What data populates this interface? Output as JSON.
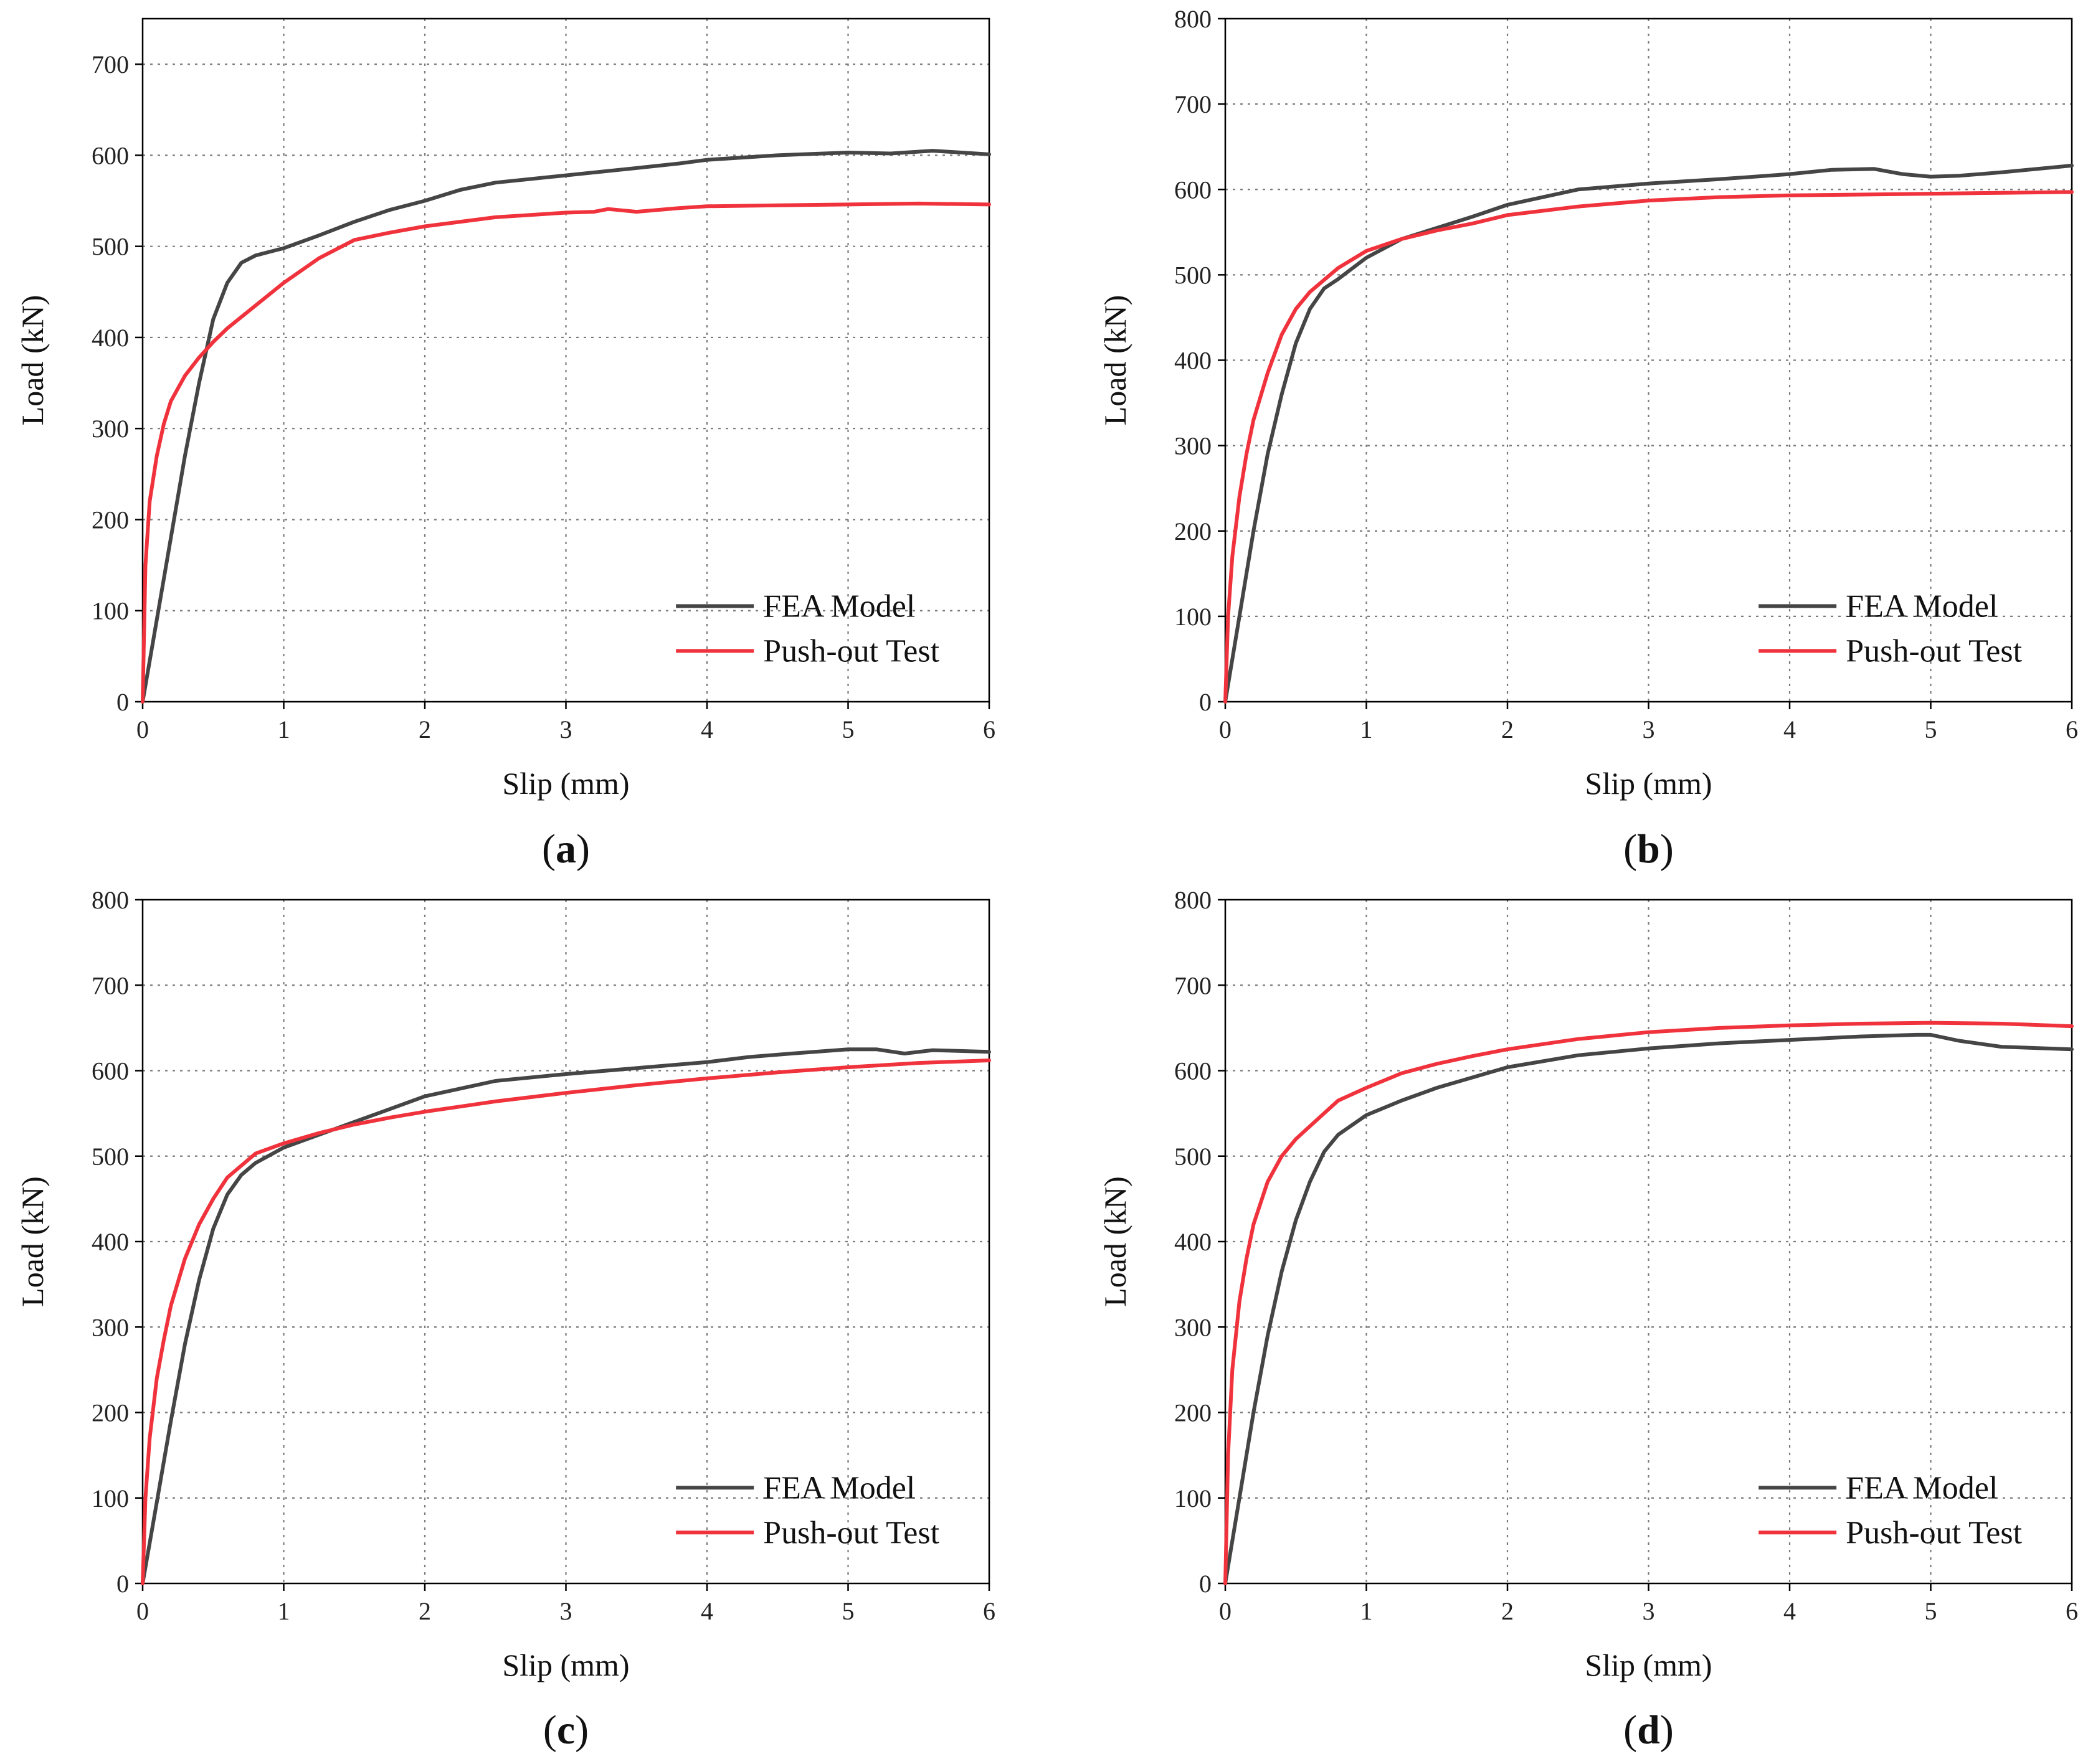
{
  "colors": {
    "fea": "#454545",
    "test": "#f0323c",
    "grid": "#7a7a7a",
    "axis": "#000000"
  },
  "chart_data": [
    {
      "id": "a",
      "type": "line",
      "caption": "a",
      "xlabel": "Slip (mm)",
      "ylabel": "Load (kN)",
      "xlim": [
        0,
        6
      ],
      "ylim": [
        0,
        750
      ],
      "xticks": [
        0,
        1,
        2,
        3,
        4,
        5,
        6
      ],
      "yticks": [
        0,
        100,
        200,
        300,
        400,
        500,
        600,
        700
      ],
      "grid": true,
      "legend_position": "bottom-right",
      "series": [
        {
          "name": "FEA Model",
          "color_key": "fea",
          "x": [
            0,
            0.1,
            0.2,
            0.3,
            0.4,
            0.5,
            0.6,
            0.7,
            0.8,
            0.9,
            1.0,
            1.25,
            1.5,
            1.75,
            2.0,
            2.25,
            2.5,
            3.0,
            3.5,
            3.8,
            4.0,
            4.5,
            5.0,
            5.3,
            5.6,
            6.0
          ],
          "y": [
            0,
            90,
            180,
            270,
            350,
            420,
            460,
            482,
            490,
            494,
            498,
            512,
            527,
            540,
            550,
            562,
            570,
            578,
            586,
            591,
            595,
            600,
            603,
            602,
            605,
            601
          ]
        },
        {
          "name": "Push-out Test",
          "color_key": "test",
          "x": [
            0,
            0.02,
            0.05,
            0.1,
            0.15,
            0.2,
            0.3,
            0.4,
            0.5,
            0.6,
            0.8,
            1.0,
            1.25,
            1.5,
            1.75,
            2.0,
            2.5,
            3.0,
            3.2,
            3.3,
            3.5,
            3.8,
            4.0,
            4.5,
            5.0,
            5.5,
            6.0
          ],
          "y": [
            0,
            150,
            220,
            270,
            305,
            330,
            358,
            378,
            395,
            410,
            435,
            460,
            487,
            507,
            515,
            522,
            532,
            537,
            538,
            541,
            538,
            542,
            544,
            545,
            546,
            547,
            546
          ]
        }
      ]
    },
    {
      "id": "b",
      "type": "line",
      "caption": "b",
      "xlabel": "Slip (mm)",
      "ylabel": "Load (kN)",
      "xlim": [
        0,
        6
      ],
      "ylim": [
        0,
        800
      ],
      "xticks": [
        0,
        1,
        2,
        3,
        4,
        5,
        6
      ],
      "yticks": [
        0,
        100,
        200,
        300,
        400,
        500,
        600,
        700,
        800
      ],
      "grid": true,
      "legend_position": "bottom-right",
      "series": [
        {
          "name": "FEA Model",
          "color_key": "fea",
          "x": [
            0,
            0.1,
            0.2,
            0.3,
            0.4,
            0.5,
            0.6,
            0.7,
            0.8,
            1.0,
            1.25,
            1.5,
            1.75,
            2.0,
            2.5,
            3.0,
            3.5,
            4.0,
            4.3,
            4.6,
            4.8,
            5.0,
            5.2,
            5.5,
            6.0
          ],
          "y": [
            0,
            100,
            200,
            290,
            360,
            420,
            460,
            484,
            495,
            520,
            542,
            555,
            568,
            582,
            600,
            607,
            612,
            618,
            623,
            624,
            618,
            615,
            616,
            620,
            628
          ]
        },
        {
          "name": "Push-out Test",
          "color_key": "test",
          "x": [
            0,
            0.02,
            0.05,
            0.1,
            0.15,
            0.2,
            0.3,
            0.4,
            0.5,
            0.6,
            0.8,
            1.0,
            1.25,
            1.5,
            1.75,
            2.0,
            2.5,
            3.0,
            3.5,
            4.0,
            4.5,
            5.0,
            5.5,
            6.0
          ],
          "y": [
            0,
            100,
            170,
            240,
            290,
            330,
            385,
            430,
            460,
            480,
            508,
            528,
            542,
            552,
            560,
            570,
            580,
            587,
            591,
            593,
            594,
            595,
            596,
            597
          ]
        }
      ]
    },
    {
      "id": "c",
      "type": "line",
      "caption": "c",
      "xlabel": "Slip (mm)",
      "ylabel": "Load (kN)",
      "xlim": [
        0,
        6
      ],
      "ylim": [
        0,
        800
      ],
      "xticks": [
        0,
        1,
        2,
        3,
        4,
        5,
        6
      ],
      "yticks": [
        0,
        100,
        200,
        300,
        400,
        500,
        600,
        700,
        800
      ],
      "grid": true,
      "legend_position": "bottom-right",
      "series": [
        {
          "name": "FEA Model",
          "color_key": "fea",
          "x": [
            0,
            0.1,
            0.2,
            0.3,
            0.4,
            0.5,
            0.6,
            0.7,
            0.8,
            1.0,
            1.25,
            1.5,
            1.75,
            2.0,
            2.5,
            3.0,
            3.5,
            4.0,
            4.3,
            4.6,
            5.0,
            5.2,
            5.4,
            5.6,
            6.0
          ],
          "y": [
            0,
            95,
            190,
            280,
            355,
            415,
            455,
            478,
            492,
            510,
            525,
            540,
            555,
            570,
            588,
            596,
            603,
            610,
            616,
            620,
            625,
            625,
            620,
            624,
            622
          ]
        },
        {
          "name": "Push-out Test",
          "color_key": "test",
          "x": [
            0,
            0.02,
            0.05,
            0.1,
            0.15,
            0.2,
            0.3,
            0.4,
            0.5,
            0.6,
            0.8,
            1.0,
            1.25,
            1.5,
            1.75,
            2.0,
            2.5,
            3.0,
            3.5,
            4.0,
            4.5,
            5.0,
            5.5,
            6.0
          ],
          "y": [
            0,
            100,
            170,
            240,
            285,
            325,
            380,
            420,
            450,
            475,
            503,
            515,
            527,
            537,
            545,
            552,
            564,
            574,
            583,
            591,
            598,
            604,
            609,
            612
          ]
        }
      ]
    },
    {
      "id": "d",
      "type": "line",
      "caption": "d",
      "xlabel": "Slip (mm)",
      "ylabel": "Load (kN)",
      "xlim": [
        0,
        6
      ],
      "ylim": [
        0,
        800
      ],
      "xticks": [
        0,
        1,
        2,
        3,
        4,
        5,
        6
      ],
      "yticks": [
        0,
        100,
        200,
        300,
        400,
        500,
        600,
        700,
        800
      ],
      "grid": true,
      "legend_position": "bottom-right",
      "series": [
        {
          "name": "FEA Model",
          "color_key": "fea",
          "x": [
            0,
            0.1,
            0.2,
            0.3,
            0.4,
            0.5,
            0.6,
            0.7,
            0.8,
            1.0,
            1.25,
            1.5,
            1.75,
            2.0,
            2.5,
            3.0,
            3.5,
            4.0,
            4.5,
            4.9,
            5.0,
            5.2,
            5.5,
            6.0
          ],
          "y": [
            0,
            100,
            200,
            290,
            365,
            425,
            470,
            505,
            525,
            548,
            565,
            580,
            592,
            604,
            618,
            626,
            632,
            636,
            640,
            642,
            642,
            635,
            628,
            625
          ]
        },
        {
          "name": "Push-out Test",
          "color_key": "test",
          "x": [
            0,
            0.02,
            0.05,
            0.1,
            0.15,
            0.2,
            0.3,
            0.4,
            0.5,
            0.6,
            0.8,
            1.0,
            1.25,
            1.5,
            1.75,
            2.0,
            2.5,
            3.0,
            3.5,
            4.0,
            4.5,
            5.0,
            5.5,
            6.0
          ],
          "y": [
            0,
            150,
            250,
            330,
            380,
            420,
            470,
            500,
            520,
            535,
            565,
            580,
            597,
            608,
            617,
            625,
            637,
            645,
            650,
            653,
            655,
            656,
            655,
            652
          ]
        }
      ]
    }
  ]
}
